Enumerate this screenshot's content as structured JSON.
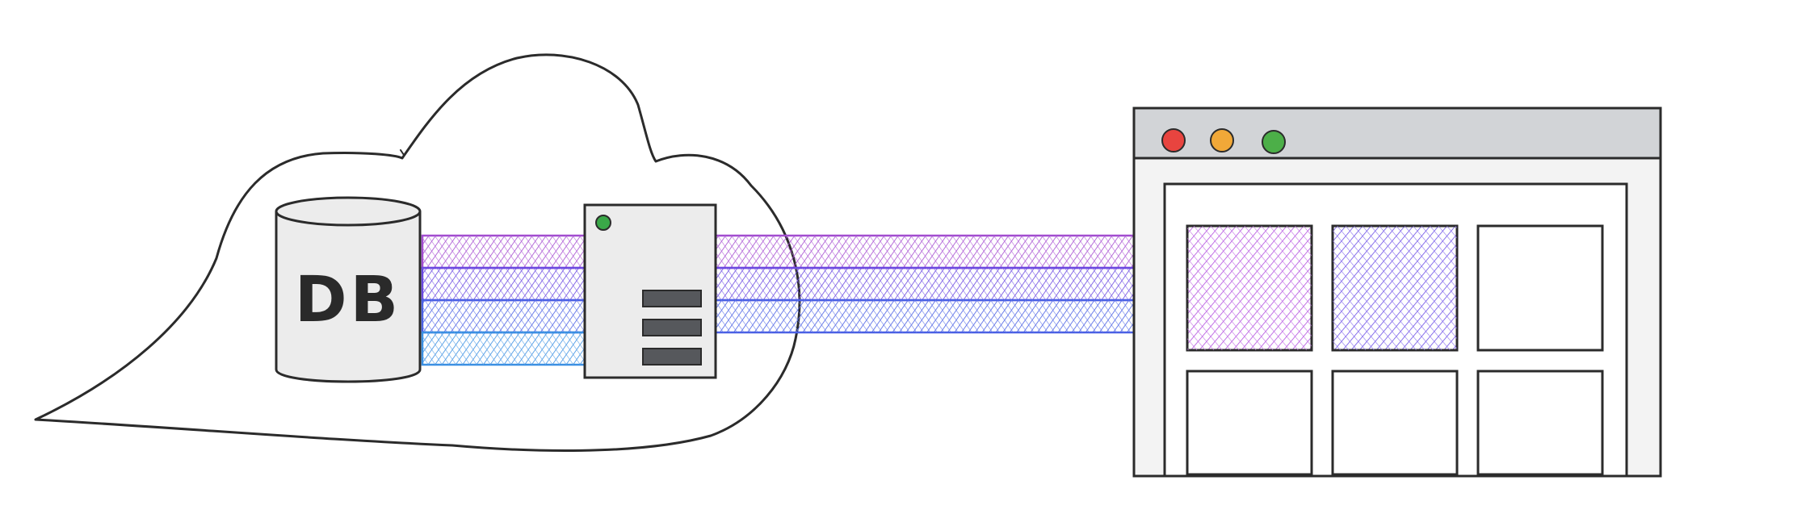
{
  "database": {
    "label": "DB"
  },
  "colors": {
    "stream_purple": "#a24ccf",
    "stream_violet": "#6a48e0",
    "stream_indigo": "#4a60e4",
    "stream_blue": "#3a8fe2",
    "server_body": "#ececec",
    "server_slot": "#56585c",
    "server_led": "#3aa848",
    "browser_titlebar": "#d2d4d7",
    "browser_body": "#f3f3f3",
    "traffic_red": "#e8443f",
    "traffic_yellow": "#f1a838",
    "traffic_green": "#4caf48",
    "tile_purple": "#b14fe0",
    "tile_violet": "#6b4ee6"
  },
  "icons": [
    "cloud-icon",
    "database-cylinder-icon",
    "server-box-icon",
    "browser-window-icon"
  ]
}
